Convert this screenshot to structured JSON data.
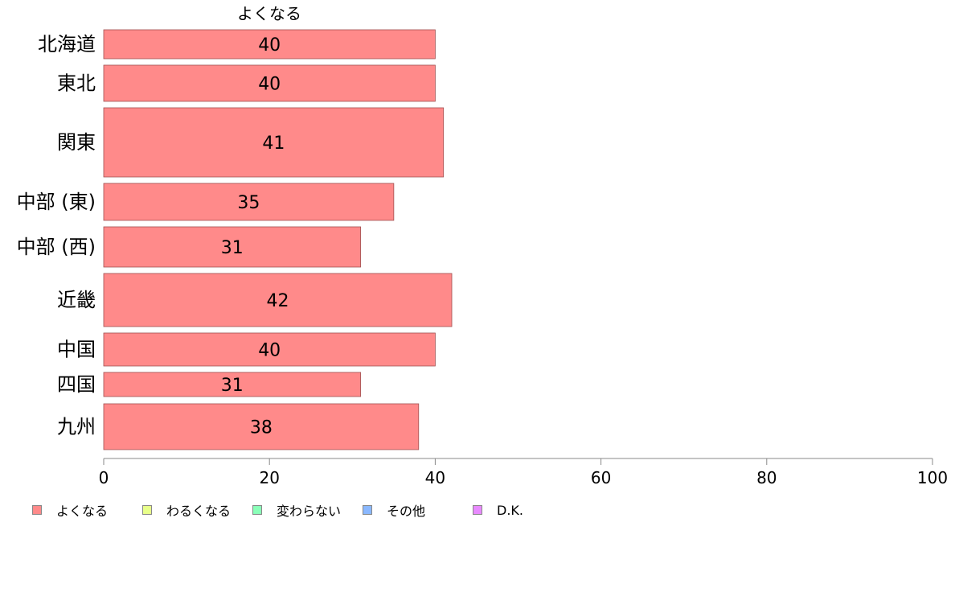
{
  "chart_data": {
    "type": "bar",
    "orientation": "horizontal",
    "series_title": "よくなる",
    "categories": [
      "北海道",
      "東北",
      "関東",
      "中部 (東)",
      "中部 (西)",
      "近畿",
      "中国",
      "四国",
      "九州"
    ],
    "series": [
      {
        "name": "よくなる",
        "values": [
          40,
          40,
          41,
          35,
          31,
          42,
          40,
          31,
          38
        ]
      }
    ],
    "data_labels": [
      "40",
      "40",
      "41",
      "35",
      "31",
      "42",
      "40",
      "31",
      "38"
    ],
    "x_ticks": [
      "0",
      "20",
      "40",
      "60",
      "80",
      "100"
    ],
    "xlim": [
      0,
      100
    ],
    "legend": {
      "position": "bottom",
      "items": [
        {
          "label": "よくなる",
          "color": "#ff8a8a"
        },
        {
          "label": "わるくなる",
          "color": "#e8ff8a"
        },
        {
          "label": "変わらない",
          "color": "#8affb8"
        },
        {
          "label": "その他",
          "color": "#8ab8ff"
        },
        {
          "label": "D.K.",
          "color": "#e88aff"
        }
      ]
    },
    "colors": {
      "bar_fill": "#ff8a8a",
      "bar_stroke": "#a05050",
      "axis": "#888888"
    },
    "grid": false
  }
}
